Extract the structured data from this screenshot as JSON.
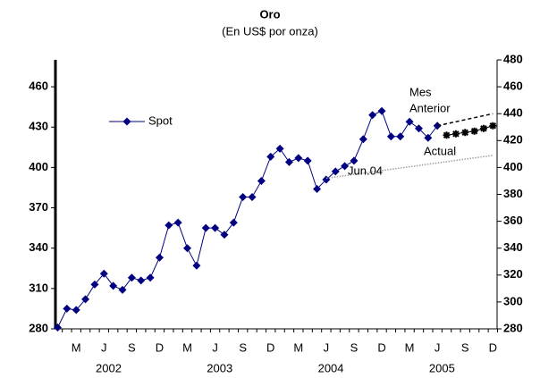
{
  "chart_data": {
    "type": "line",
    "title": "Oro",
    "subtitle": "(En US$ por onza)",
    "categories": [
      null,
      null,
      "M",
      null,
      null,
      "J",
      null,
      null,
      "S",
      null,
      null,
      "D",
      null,
      null,
      "M",
      null,
      null,
      "J",
      null,
      null,
      "S",
      null,
      null,
      "D",
      null,
      null,
      "M",
      null,
      null,
      "J",
      null,
      null,
      "S",
      null,
      null,
      "D",
      null,
      null,
      "M",
      null,
      null,
      "J",
      null,
      null,
      "S",
      null,
      null,
      "D"
    ],
    "year_labels": [
      "2002",
      "2003",
      "2004",
      "2005"
    ],
    "series": [
      {
        "name": "Spot",
        "color": "#000080",
        "marker": "diamond",
        "values": [
          281,
          295,
          294,
          302,
          313,
          321,
          312,
          309,
          318,
          316,
          318,
          333,
          357,
          359,
          340,
          327,
          355,
          355,
          350,
          359,
          378,
          378,
          390,
          408,
          414,
          404,
          407,
          405,
          384,
          391,
          397,
          401,
          405,
          421,
          439,
          442,
          423,
          423,
          434,
          429,
          422,
          431,
          null,
          null,
          null,
          null,
          null,
          null
        ]
      },
      {
        "color": "#000000",
        "marker": "star",
        "axis": "y2",
        "values": [
          null,
          null,
          null,
          null,
          null,
          null,
          null,
          null,
          null,
          null,
          null,
          null,
          null,
          null,
          null,
          null,
          null,
          null,
          null,
          null,
          null,
          null,
          null,
          null,
          null,
          null,
          null,
          null,
          null,
          null,
          null,
          null,
          null,
          null,
          null,
          null,
          null,
          null,
          null,
          null,
          null,
          null,
          424,
          425,
          426,
          427,
          429,
          431
        ]
      },
      {
        "color": "#000000",
        "dash": "dashed",
        "values": [
          null,
          null,
          null,
          null,
          null,
          null,
          null,
          null,
          null,
          null,
          null,
          null,
          null,
          null,
          null,
          null,
          null,
          null,
          null,
          null,
          null,
          null,
          null,
          null,
          null,
          null,
          null,
          null,
          null,
          null,
          null,
          null,
          null,
          null,
          null,
          null,
          null,
          null,
          null,
          null,
          null,
          431,
          null,
          null,
          null,
          null,
          null,
          440
        ]
      },
      {
        "color": "#a0a0a0",
        "dash": "dotted",
        "values": [
          null,
          null,
          null,
          null,
          null,
          null,
          null,
          null,
          null,
          null,
          null,
          null,
          null,
          null,
          null,
          null,
          null,
          null,
          null,
          null,
          null,
          null,
          null,
          null,
          null,
          null,
          null,
          null,
          null,
          392,
          null,
          null,
          null,
          null,
          null,
          null,
          null,
          null,
          null,
          null,
          null,
          null,
          null,
          null,
          null,
          null,
          null,
          409
        ]
      }
    ],
    "annotations": [
      "Mes",
      "Anterior",
      "Actual",
      "Jun.04"
    ],
    "ylim": [
      280,
      480
    ],
    "yticks": [
      280,
      310,
      340,
      370,
      400,
      430,
      460
    ],
    "y2lim": [
      280,
      480
    ],
    "y2ticks": [
      280,
      300,
      320,
      340,
      360,
      380,
      400,
      420,
      440,
      460,
      480
    ],
    "legend": "upper left"
  }
}
